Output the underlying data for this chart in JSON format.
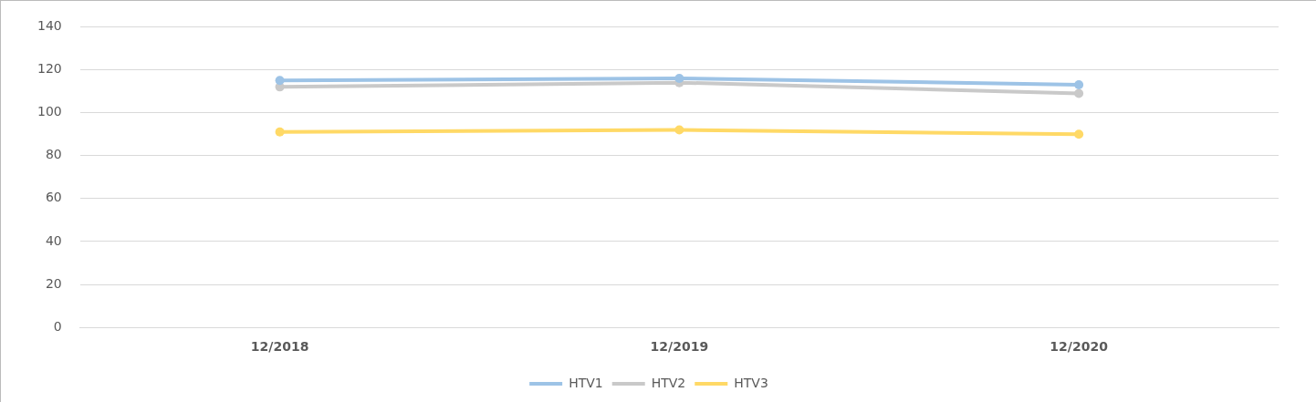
{
  "chart_data": {
    "type": "line",
    "categories": [
      "12/2018",
      "12/2019",
      "12/2020"
    ],
    "series": [
      {
        "name": "HTV1",
        "color": "#9dc3e6",
        "values": [
          115,
          116,
          113
        ]
      },
      {
        "name": "HTV2",
        "color": "#c9c9c9",
        "values": [
          112,
          114,
          109
        ]
      },
      {
        "name": "HTV3",
        "color": "#ffd966",
        "values": [
          91,
          92,
          90
        ]
      }
    ],
    "ylim": [
      0,
      140
    ],
    "yticks": [
      0,
      20,
      40,
      60,
      80,
      100,
      120,
      140
    ],
    "grid": "y",
    "legend": "bottom",
    "marker": "circle",
    "line_style": "solid"
  }
}
